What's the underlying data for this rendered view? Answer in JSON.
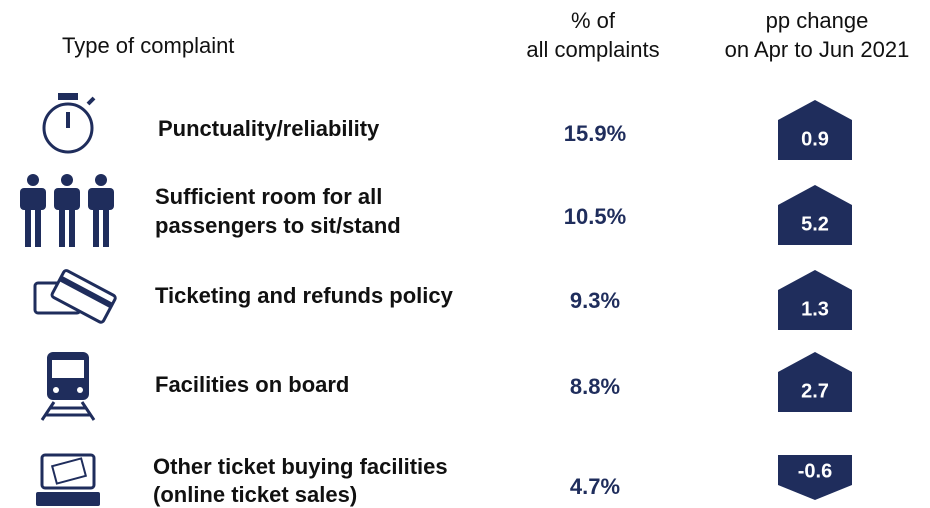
{
  "header": {
    "type_label": "Type of complaint",
    "percent_label": [
      "% of",
      "all complaints"
    ],
    "change_label": [
      "pp change",
      "on Apr to Jun 2021"
    ]
  },
  "rows": [
    {
      "label": [
        "Punctuality/reliability"
      ],
      "percent": "15.9%",
      "change": "0.9"
    },
    {
      "label": [
        "Sufficient room for all",
        "passengers to sit/stand"
      ],
      "percent": "10.5%",
      "change": "5.2"
    },
    {
      "label": [
        "Ticketing and refunds policy"
      ],
      "percent": "9.3%",
      "change": "1.3"
    },
    {
      "label": [
        "Facilities on board"
      ],
      "percent": "8.8%",
      "change": "2.7"
    },
    {
      "label": [
        "Other ticket buying facilities",
        "(online ticket sales)"
      ],
      "percent": "4.7%",
      "change": "-0.6"
    }
  ]
}
